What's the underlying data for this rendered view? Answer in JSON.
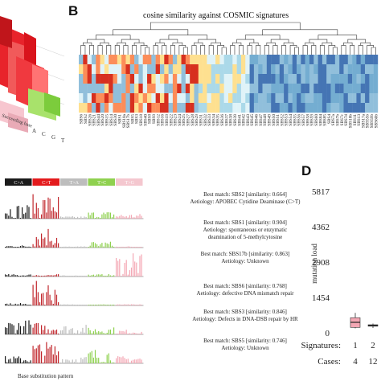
{
  "panel_b": {
    "letter": "B",
    "title": "cosine similarity against COSMIC signatures",
    "signatures": [
      "SBS6",
      "SBS2",
      "SBS26",
      "SBS21",
      "SBS44",
      "SBS20",
      "SBS15",
      "SBS14",
      "SBS30",
      "SBS1",
      "SBS10a",
      "SBS17b",
      "SBS5",
      "SBS3",
      "SBS18",
      "SBS40",
      "SBS8",
      "SBS9",
      "SBS12",
      "SBS16",
      "SBS19",
      "SBS22",
      "SBS23",
      "SBS24",
      "SBS25",
      "SBS27",
      "SBS28",
      "SBS29",
      "SBS31",
      "SBS32",
      "SBS33",
      "SBS34",
      "SBS35",
      "SBS36",
      "SBS37",
      "SBS38",
      "SBS39",
      "SBS41",
      "SBS42",
      "SBS43",
      "SBS45",
      "SBS46",
      "SBS47",
      "SBS48",
      "SBS49",
      "SBS50",
      "SBS51",
      "SBS52",
      "SBS53",
      "SBS54",
      "SBS55",
      "SBS56",
      "SBS57",
      "SBS58",
      "SBS59",
      "SBS60",
      "SBS84",
      "SBS85",
      "SBS4",
      "SBS7a",
      "SBS7b",
      "SBS7c",
      "SBS7d",
      "SBS10b",
      "SBS11",
      "SBS13",
      "SBS17a",
      "SBS55b",
      "SBS59b",
      "SBS60b"
    ]
  },
  "panel_a": {
    "axis_label": "Succeeding base",
    "axis_ticks": [
      "A",
      "C",
      "G",
      "T",
      "A",
      "C",
      "G",
      "T"
    ]
  },
  "panel_c": {
    "mutation_types": [
      {
        "label": "C>A",
        "color": "#1b1b1b"
      },
      {
        "label": "C>T",
        "color": "#e31a1c"
      },
      {
        "label": "T>A",
        "color": "#bdbdbd"
      },
      {
        "label": "T>C",
        "color": "#8fd14f"
      },
      {
        "label": "T>G",
        "color": "#f4c7cf"
      }
    ],
    "xlabel": "Base substitution pattern",
    "signatures": [
      {
        "match": "Best match: SBS2 [similarity: 0.664]",
        "aetiology": [
          "Aetiology: APOBEC Cytidine Deaminase (C>T)"
        ]
      },
      {
        "match": "Best match: SBS1 [similarity: 0.904]",
        "aetiology": [
          "Aetiology: spontaneous or enzymatic",
          "deamination of 5-methylcytosine"
        ]
      },
      {
        "match": "Best match: SBS17b [similarity: 0.863]",
        "aetiology": [
          "Aetiology: Unknown"
        ]
      },
      {
        "match": "Best match: SBS6 [similarity: 0.768]",
        "aetiology": [
          "Aetiology: defective DNA mismatch repair"
        ]
      },
      {
        "match": "Best match: SBS3 [similarity: 0.846]",
        "aetiology": [
          "Aetiology: Defects in DNA-DSB repair by HR"
        ]
      },
      {
        "match": "Best match: SBS5 [similarity: 0.746]",
        "aetiology": [
          "Aetiology: Unknown"
        ]
      }
    ]
  },
  "panel_d": {
    "letter": "D",
    "chart_data": {
      "type": "box",
      "ylabel": "mutation load",
      "yticks": [
        "0",
        "1454",
        "2908",
        "4362",
        "5817"
      ],
      "ylim": [
        0,
        5817
      ],
      "categories": [
        "1",
        "2"
      ],
      "category_axis_label": "Signatures:",
      "cases_label": "Cases:",
      "cases": [
        "4",
        "12"
      ],
      "boxes": [
        {
          "category": "1",
          "min": 180,
          "q1": 220,
          "median": 430,
          "q3": 620,
          "max": 820,
          "color": "#f4a7b4"
        },
        {
          "category": "2",
          "min": 200,
          "q1": 270,
          "median": 300,
          "q3": 330,
          "max": 380,
          "color": "#444444"
        }
      ]
    }
  }
}
